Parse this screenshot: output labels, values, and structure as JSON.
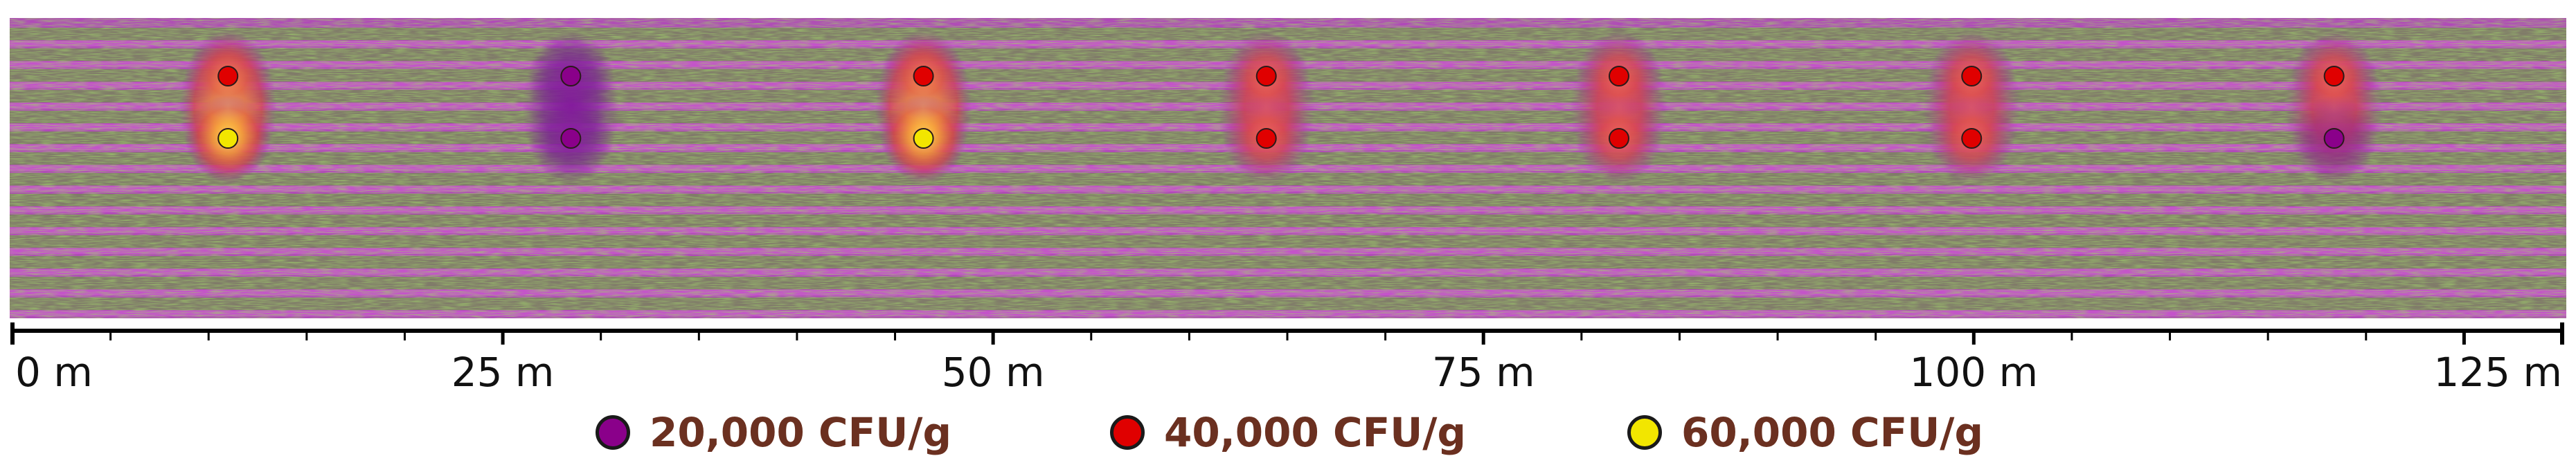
{
  "map": {
    "background_colors": {
      "ground": "#b04ab8",
      "vegetation": "#5aa428",
      "inter_row": "#d25ad6"
    },
    "max_distance_m": 130,
    "sample_sites": [
      {
        "distance_m": 11.0,
        "samples": [
          {
            "level": 40000,
            "color": "#e00000"
          },
          {
            "level": 60000,
            "color": "#f2e600"
          }
        ]
      },
      {
        "distance_m": 28.5,
        "samples": [
          {
            "level": 20000,
            "color": "#8a008a"
          },
          {
            "level": 20000,
            "color": "#8a008a"
          }
        ]
      },
      {
        "distance_m": 46.5,
        "samples": [
          {
            "level": 40000,
            "color": "#e00000"
          },
          {
            "level": 60000,
            "color": "#f2e600"
          }
        ]
      },
      {
        "distance_m": 64.0,
        "samples": [
          {
            "level": 40000,
            "color": "#e00000"
          },
          {
            "level": 40000,
            "color": "#e00000"
          }
        ]
      },
      {
        "distance_m": 82.0,
        "samples": [
          {
            "level": 40000,
            "color": "#e00000"
          },
          {
            "level": 40000,
            "color": "#e00000"
          }
        ]
      },
      {
        "distance_m": 100.0,
        "samples": [
          {
            "level": 40000,
            "color": "#e00000"
          },
          {
            "level": 40000,
            "color": "#e00000"
          }
        ]
      },
      {
        "distance_m": 118.5,
        "samples": [
          {
            "level": 40000,
            "color": "#e00000"
          },
          {
            "level": 20000,
            "color": "#8a008a"
          }
        ]
      }
    ]
  },
  "scale_bar": {
    "max_m": 130,
    "major_ticks": [
      0,
      25,
      50,
      75,
      100,
      125
    ],
    "minor_step_m": 5,
    "labels": [
      "0 m",
      "25 m",
      "50 m",
      "75 m",
      "100 m",
      "125 m"
    ]
  },
  "legend": {
    "items": [
      {
        "label": "20,000 CFU/g",
        "color": "#8a008a"
      },
      {
        "label": "40,000 CFU/g",
        "color": "#e00000"
      },
      {
        "label": "60,000 CFU/g",
        "color": "#f2e600"
      }
    ]
  }
}
